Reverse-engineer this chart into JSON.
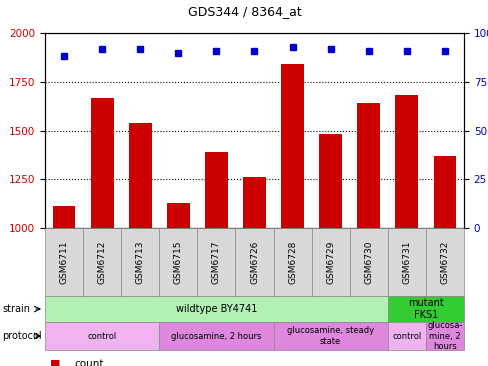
{
  "title": "GDS344 / 8364_at",
  "samples": [
    "GSM6711",
    "GSM6712",
    "GSM6713",
    "GSM6715",
    "GSM6717",
    "GSM6726",
    "GSM6728",
    "GSM6729",
    "GSM6730",
    "GSM6731",
    "GSM6732"
  ],
  "counts": [
    1115,
    1665,
    1540,
    1130,
    1390,
    1260,
    1840,
    1480,
    1640,
    1680,
    1370
  ],
  "percentiles": [
    88,
    92,
    92,
    90,
    91,
    91,
    93,
    92,
    91,
    91,
    91
  ],
  "ylim_left": [
    1000,
    2000
  ],
  "ylim_right": [
    0,
    100
  ],
  "yticks_left": [
    1000,
    1250,
    1500,
    1750,
    2000
  ],
  "yticks_right": [
    0,
    25,
    50,
    75,
    100
  ],
  "bar_color": "#cc0000",
  "dot_color": "#0000cc",
  "strain_groups": [
    {
      "label": "wildtype BY4741",
      "start": 0,
      "end": 9,
      "color": "#b3f0b3"
    },
    {
      "label": "mutant\nFKS1",
      "start": 9,
      "end": 11,
      "color": "#33cc33"
    }
  ],
  "protocol_groups": [
    {
      "label": "control",
      "start": 0,
      "end": 3,
      "color": "#f0b3f0"
    },
    {
      "label": "glucosamine, 2 hours",
      "start": 3,
      "end": 6,
      "color": "#dd88dd"
    },
    {
      "label": "glucosamine, steady\nstate",
      "start": 6,
      "end": 9,
      "color": "#dd88dd"
    },
    {
      "label": "control",
      "start": 9,
      "end": 10,
      "color": "#f0b3f0"
    },
    {
      "label": "glucosa-\nmine, 2\nhours",
      "start": 10,
      "end": 11,
      "color": "#dd88dd"
    }
  ]
}
